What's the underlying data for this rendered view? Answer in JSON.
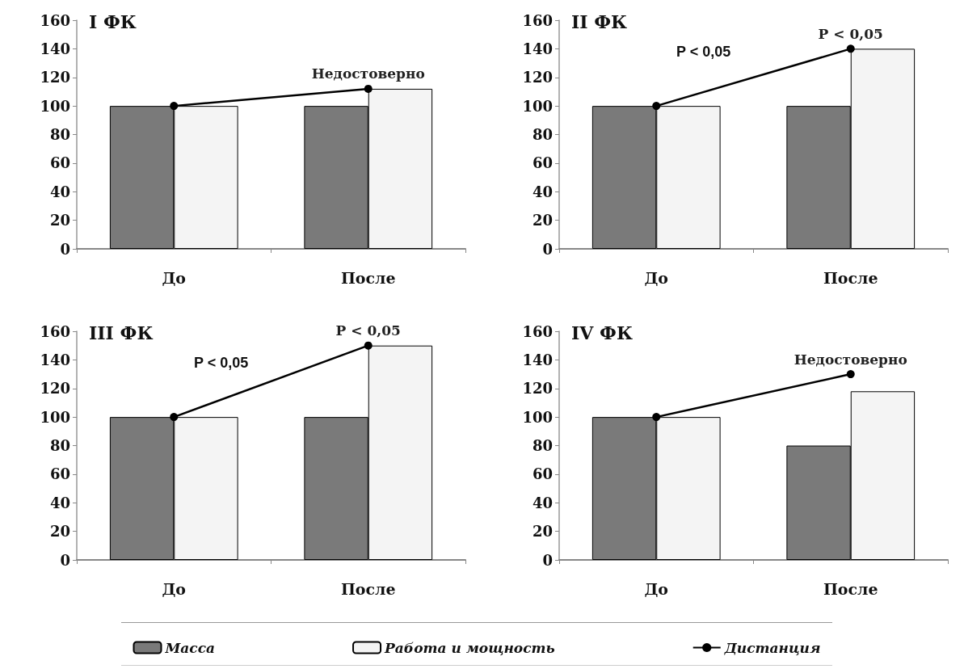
{
  "chart_data": [
    {
      "type": "bar",
      "title": "I ФК",
      "categories": [
        "До",
        "После"
      ],
      "ylim": [
        0,
        160
      ],
      "yticks": [
        0,
        20,
        40,
        60,
        80,
        100,
        120,
        140,
        160
      ],
      "grid": false,
      "legend": false,
      "marker": "circle",
      "annotations": [
        {
          "text": "Недостоверно",
          "x": "После",
          "y": 112
        }
      ],
      "series": [
        {
          "color": "#7a7a7a",
          "values": [
            100,
            100
          ]
        },
        {
          "color": "#f4f4f4",
          "values": [
            100,
            112
          ]
        },
        {
          "type": "line",
          "color": "#000000",
          "values": [
            100,
            112
          ]
        }
      ]
    },
    {
      "type": "bar",
      "title": "II ФК",
      "categories": [
        "До",
        "После"
      ],
      "ylim": [
        0,
        160
      ],
      "yticks": [
        0,
        20,
        40,
        60,
        80,
        100,
        120,
        140,
        160
      ],
      "grid": false,
      "legend": false,
      "marker": "circle",
      "annotations": [
        "P < 0,05",
        {
          "text": "P < 0,05",
          "x": "После",
          "y": 140
        }
      ],
      "series": [
        {
          "color": "#7a7a7a",
          "values": [
            100,
            100
          ]
        },
        {
          "color": "#f4f4f4",
          "values": [
            100,
            140
          ]
        },
        {
          "type": "line",
          "color": "#000000",
          "values": [
            100,
            140
          ]
        }
      ]
    },
    {
      "type": "bar",
      "title": "III ФК",
      "categories": [
        "До",
        "После"
      ],
      "ylim": [
        0,
        160
      ],
      "yticks": [
        0,
        20,
        40,
        60,
        80,
        100,
        120,
        140,
        160
      ],
      "grid": false,
      "legend": false,
      "marker": "circle",
      "annotations": [
        "P < 0,05",
        {
          "text": "P < 0,05",
          "x": "После",
          "y": 150
        }
      ],
      "series": [
        {
          "color": "#7a7a7a",
          "values": [
            100,
            100
          ]
        },
        {
          "color": "#f4f4f4",
          "values": [
            100,
            150
          ]
        },
        {
          "type": "line",
          "color": "#000000",
          "values": [
            100,
            150
          ]
        }
      ]
    },
    {
      "type": "bar",
      "title": "IV ФК",
      "categories": [
        "До",
        "После"
      ],
      "ylim": [
        0,
        160
      ],
      "yticks": [
        0,
        20,
        40,
        60,
        80,
        100,
        120,
        140,
        160
      ],
      "grid": false,
      "legend": "bottom",
      "marker": "circle",
      "annotations": [
        {
          "text": "Недостоверно",
          "x": "После",
          "y": 130
        }
      ],
      "series": [
        {
          "name": "Масса",
          "color": "#7a7a7a",
          "values": [
            100,
            80
          ]
        },
        {
          "name": "Работа и мощность",
          "color": "#f4f4f4",
          "values": [
            100,
            118
          ]
        },
        {
          "name": "Дистанция",
          "type": "line",
          "color": "#000000",
          "values": [
            100,
            130
          ]
        }
      ]
    }
  ]
}
